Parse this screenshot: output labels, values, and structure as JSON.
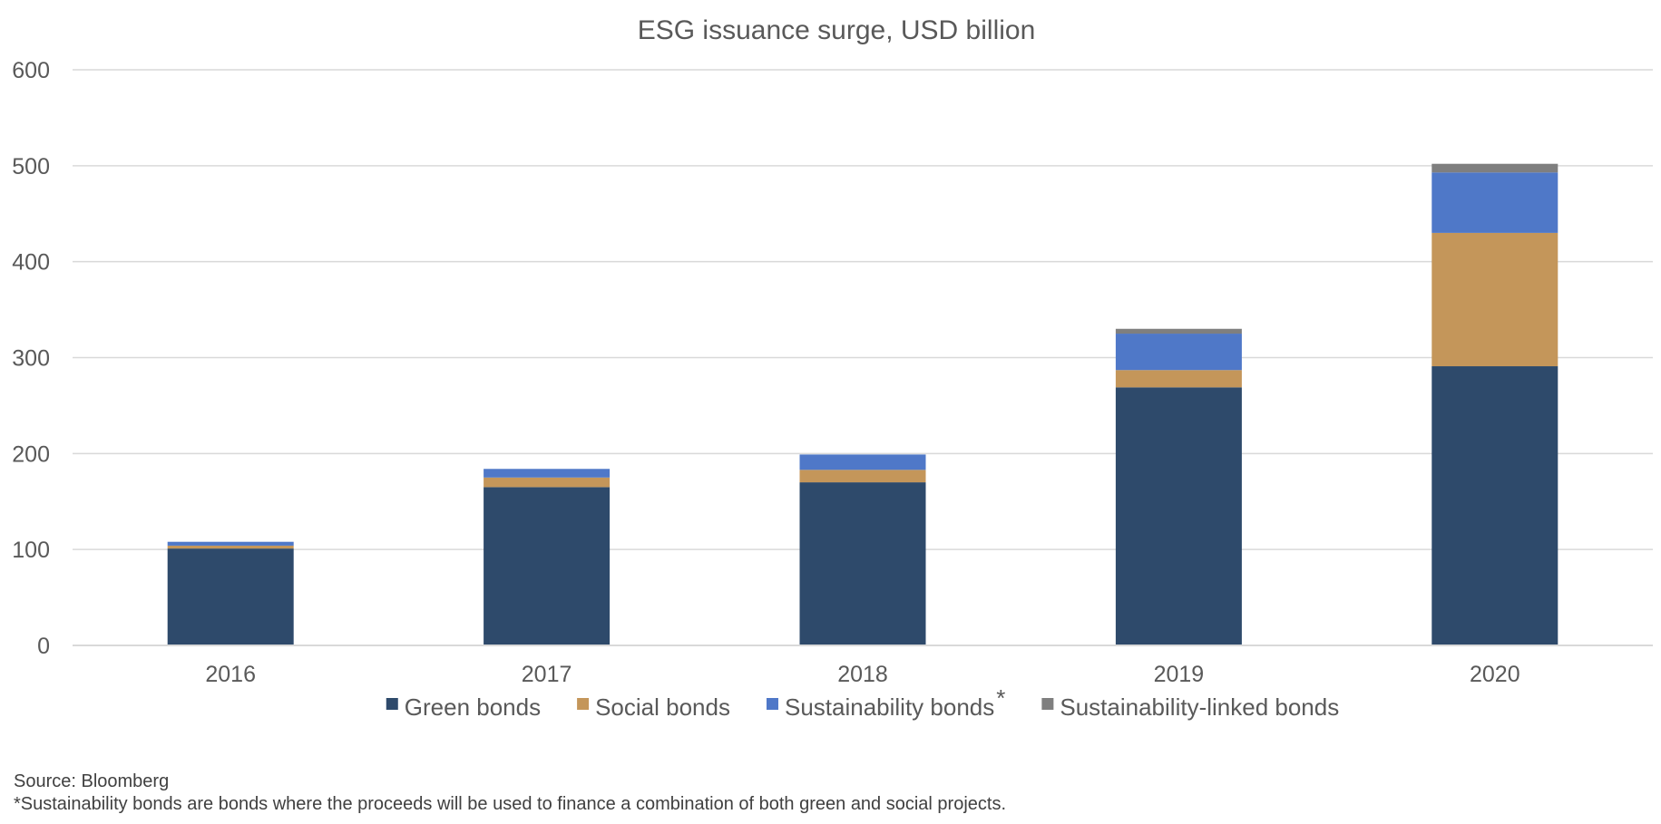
{
  "chart_data": {
    "type": "bar",
    "stacked": true,
    "title": "ESG issuance surge, USD billion",
    "xlabel": "",
    "ylabel": "",
    "categories": [
      "2016",
      "2017",
      "2018",
      "2019",
      "2020"
    ],
    "ylim": [
      0,
      600
    ],
    "yticks": [
      0,
      100,
      200,
      300,
      400,
      500,
      600
    ],
    "grid": true,
    "legend_position": "bottom",
    "series": [
      {
        "name": "Green bonds",
        "color": "#2e4a6b",
        "values": [
          101,
          165,
          170,
          269,
          291
        ]
      },
      {
        "name": "Social bonds",
        "color": "#c4965a",
        "values": [
          3,
          10,
          13,
          18,
          139
        ]
      },
      {
        "name": "Sustainability bonds",
        "color": "#4f78c8",
        "values": [
          4,
          9,
          16,
          38,
          63
        ]
      },
      {
        "name": "Sustainability-linked bonds",
        "color": "#7f7f7f",
        "values": [
          0,
          0,
          0,
          5,
          9
        ]
      }
    ],
    "legend_footnote_marker": "*"
  },
  "source": "Source: Bloomberg",
  "footnote": "*Sustainability bonds are bonds where the proceeds will be used to finance a combination of both green and social projects."
}
